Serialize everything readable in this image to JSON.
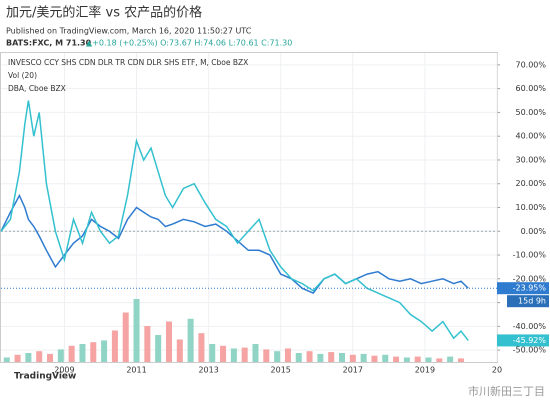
{
  "chart_data": {
    "type": "line",
    "title": "加元/美元的汇率 vs 农产品的价格",
    "subtitle": "Published on TradingView.com, March 16, 2020 11:50:27 UTC",
    "symbol_line": "BATS:FXC, M 71.30",
    "change_line": "▲+0.18 (+0.25%) O:73.67 H:74.06 L:70.61 C:71.30",
    "volume_label": "Vol (20)",
    "x": [
      2007.24,
      2007.5,
      2007.75,
      2007.9,
      2008.0,
      2008.15,
      2008.3,
      2008.5,
      2008.75,
      2009.0,
      2009.25,
      2009.5,
      2009.75,
      2010.0,
      2010.25,
      2010.5,
      2010.75,
      2011.0,
      2011.2,
      2011.4,
      2011.6,
      2011.8,
      2012.0,
      2012.3,
      2012.6,
      2012.9,
      2013.2,
      2013.5,
      2013.8,
      2014.1,
      2014.4,
      2014.7,
      2015.0,
      2015.3,
      2015.6,
      2015.9,
      2016.2,
      2016.5,
      2016.8,
      2017.1,
      2017.4,
      2017.7,
      2018.0,
      2018.3,
      2018.6,
      2018.9,
      2019.2,
      2019.5,
      2019.8,
      2020.0,
      2020.2
    ],
    "series": [
      {
        "name": "INVESCO CCY SHS CDN DLR TR CDN DLR SHS ETF, M, Cboe BZX",
        "color": "#2f7bd0",
        "values": [
          0,
          8,
          15,
          10,
          5,
          2,
          -2,
          -8,
          -15,
          -10,
          -5,
          -2,
          5,
          2,
          0,
          -3,
          5,
          10,
          8,
          6,
          5,
          2,
          3,
          5,
          4,
          2,
          3,
          0,
          -4,
          -8,
          -8,
          -10,
          -18,
          -20,
          -24,
          -26,
          -20,
          -18,
          -22,
          -20,
          -18,
          -17,
          -20,
          -21,
          -20,
          -22,
          -21,
          -20,
          -22,
          -21,
          -23.95
        ],
        "price_line": {
          "value": -23.95,
          "label": "-23.95%"
        },
        "countdown": "15d 9h"
      },
      {
        "name": "DBA, Cboe BZX",
        "color": "#33c1cf",
        "values": [
          0,
          5,
          25,
          45,
          55,
          40,
          50,
          20,
          0,
          -12,
          5,
          -5,
          8,
          0,
          -5,
          -2,
          15,
          38,
          30,
          35,
          25,
          15,
          10,
          18,
          20,
          12,
          5,
          2,
          -5,
          0,
          5,
          -8,
          -15,
          -20,
          -22,
          -25,
          -20,
          -18,
          -22,
          -20,
          -24,
          -26,
          -28,
          -30,
          -35,
          -38,
          -42,
          -38,
          -45,
          -42,
          -45.92
        ],
        "price_line": {
          "value": -45.92,
          "label": "-45.92%"
        }
      }
    ],
    "volume": {
      "x": [
        2007.4,
        2007.7,
        2008.0,
        2008.3,
        2008.6,
        2008.9,
        2009.2,
        2009.5,
        2009.8,
        2010.1,
        2010.4,
        2010.7,
        2011.0,
        2011.3,
        2011.6,
        2011.9,
        2012.2,
        2012.5,
        2012.8,
        2013.1,
        2013.4,
        2013.7,
        2014.0,
        2014.3,
        2014.6,
        2014.9,
        2015.2,
        2015.5,
        2015.8,
        2016.1,
        2016.4,
        2016.7,
        2017.0,
        2017.3,
        2017.6,
        2017.9,
        2018.2,
        2018.5,
        2018.8,
        2019.1,
        2019.4,
        2019.7,
        2020.0
      ],
      "values": [
        5,
        8,
        10,
        12,
        9,
        14,
        18,
        20,
        22,
        24,
        35,
        55,
        70,
        40,
        30,
        45,
        25,
        48,
        32,
        20,
        18,
        15,
        16,
        20,
        14,
        12,
        15,
        10,
        12,
        9,
        11,
        10,
        8,
        9,
        7,
        8,
        6,
        5,
        6,
        5,
        4,
        6,
        4
      ],
      "colors": [
        "#8fd4c4",
        "#f5a3a3",
        "#8fd4c4",
        "#f5a3a3",
        "#f5a3a3",
        "#8fd4c4",
        "#f5a3a3",
        "#8fd4c4",
        "#f5a3a3",
        "#8fd4c4",
        "#f5a3a3",
        "#f5a3a3",
        "#8fd4c4",
        "#f5a3a3",
        "#8fd4c4",
        "#f5a3a3",
        "#f5a3a3",
        "#8fd4c4",
        "#f5a3a3",
        "#8fd4c4",
        "#f5a3a3",
        "#8fd4c4",
        "#f5a3a3",
        "#8fd4c4",
        "#f5a3a3",
        "#8fd4c4",
        "#f5a3a3",
        "#8fd4c4",
        "#f5a3a3",
        "#8fd4c4",
        "#f5a3a3",
        "#8fd4c4",
        "#f5a3a3",
        "#8fd4c4",
        "#f5a3a3",
        "#8fd4c4",
        "#f5a3a3",
        "#8fd4c4",
        "#f5a3a3",
        "#8fd4c4",
        "#f5a3a3",
        "#8fd4c4",
        "#f5a3a3"
      ],
      "ylim": [
        0,
        100
      ]
    },
    "xlim": [
      2007.24,
      2021.0
    ],
    "xticks": [
      2009,
      2011,
      2013,
      2015,
      2017,
      2019,
      {
        "value": 2021,
        "label": "20"
      }
    ],
    "ylim": [
      -55,
      75
    ],
    "yticks": [
      {
        "value": 70,
        "label": "70.00%"
      },
      {
        "value": 60,
        "label": "60.00%"
      },
      {
        "value": 50,
        "label": "50.00%"
      },
      {
        "value": 40,
        "label": "40.00%"
      },
      {
        "value": 30,
        "label": "30.00%"
      },
      {
        "value": 20,
        "label": "20.00%"
      },
      {
        "value": 10,
        "label": "10.00%"
      },
      {
        "value": 0,
        "label": "0.00%"
      },
      {
        "value": -10,
        "label": "-10.00%"
      },
      {
        "value": -20,
        "label": "-20.00%"
      },
      {
        "value": -30,
        "label": "-30.00%"
      },
      {
        "value": -40,
        "label": "-40.00%"
      },
      {
        "value": -50,
        "label": "-50.00%"
      }
    ],
    "grid": true
  },
  "footer": {
    "brand": "TradingView",
    "watermark": "市川新田三丁目"
  }
}
